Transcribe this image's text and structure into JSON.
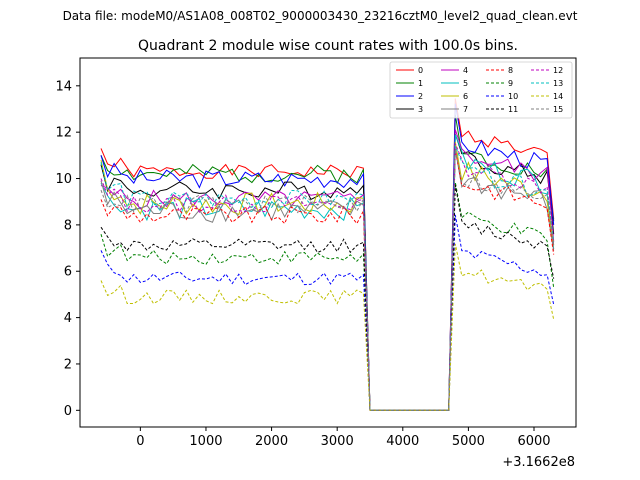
{
  "figure": {
    "suptitle": "Data file: modeM0/AS1A08_008T02_9000003430_23216cztM0_level2_quad_clean.evt"
  },
  "chart_data": {
    "type": "line",
    "title": "Quadrant 2 module wise count rates with 100.0s bins.",
    "xlabel": "",
    "ylabel": "",
    "x_offset_label": "+3.1662e8",
    "xlim": [
      -920,
      6640
    ],
    "ylim": [
      -0.72,
      15.2
    ],
    "xticks": [
      0,
      1000,
      2000,
      3000,
      4000,
      5000,
      6000
    ],
    "yticks": [
      0,
      2,
      4,
      6,
      8,
      10,
      12,
      14
    ],
    "grid": false,
    "legend_position": "top-right",
    "x": [
      -600,
      -500,
      -400,
      -300,
      -200,
      -100,
      0,
      100,
      200,
      300,
      400,
      500,
      600,
      700,
      800,
      900,
      1000,
      1100,
      1200,
      1300,
      1400,
      1500,
      1600,
      1700,
      1800,
      1900,
      2000,
      2100,
      2200,
      2300,
      2400,
      2500,
      2600,
      2700,
      2800,
      2900,
      3000,
      3100,
      3200,
      3300,
      3400,
      3500,
      3600,
      3700,
      3800,
      3900,
      4000,
      4100,
      4200,
      4300,
      4400,
      4500,
      4600,
      4700,
      4800,
      4900,
      5000,
      5100,
      5200,
      5300,
      5400,
      5500,
      5600,
      5700,
      5800,
      5900,
      6000,
      6100,
      6200,
      6300
    ],
    "gap_indices": [
      41,
      42,
      43,
      44,
      45,
      46,
      47,
      48,
      49,
      50,
      51,
      52,
      53
    ],
    "series": [
      {
        "name": "0",
        "color": "#ff0000",
        "dash": "solid",
        "base": 10.3,
        "post": 12.0,
        "amp": 0.3,
        "seed": 1,
        "first": 11.3
      },
      {
        "name": "1",
        "color": "#008000",
        "dash": "solid",
        "base": 10.2,
        "post": 11.2,
        "amp": 0.4,
        "seed": 2,
        "first": 11.0
      },
      {
        "name": "2",
        "color": "#0000ff",
        "dash": "solid",
        "base": 10.0,
        "post": 11.6,
        "amp": 0.4,
        "seed": 3,
        "first": 11.0
      },
      {
        "name": "3",
        "color": "#000000",
        "dash": "solid",
        "base": 9.5,
        "post": 11.0,
        "amp": 0.4,
        "seed": 4,
        "first": 10.6
      },
      {
        "name": "4",
        "color": "#bf00bf",
        "dash": "solid",
        "base": 9.1,
        "post": 11.1,
        "amp": 0.4,
        "seed": 5,
        "first": 9.7
      },
      {
        "name": "5",
        "color": "#00bfbf",
        "dash": "solid",
        "base": 8.7,
        "post": 10.8,
        "amp": 0.5,
        "seed": 6,
        "first": 9.8
      },
      {
        "name": "6",
        "color": "#bfbf00",
        "dash": "solid",
        "base": 8.9,
        "post": 10.4,
        "amp": 0.5,
        "seed": 7,
        "first": 10.8
      },
      {
        "name": "7",
        "color": "#808080",
        "dash": "solid",
        "base": 8.6,
        "post": 10.0,
        "amp": 0.5,
        "seed": 8,
        "first": 9.9
      },
      {
        "name": "8",
        "color": "#ff0000",
        "dash": "dashed",
        "base": 8.4,
        "post": 9.9,
        "amp": 0.4,
        "seed": 9,
        "first": 9.1
      },
      {
        "name": "9",
        "color": "#008000",
        "dash": "dashed",
        "base": 6.6,
        "post": 8.4,
        "amp": 0.3,
        "seed": 10,
        "first": 7.6
      },
      {
        "name": "10",
        "color": "#0000ff",
        "dash": "dashed",
        "base": 5.7,
        "post": 6.9,
        "amp": 0.3,
        "seed": 11,
        "first": 6.9
      },
      {
        "name": "11",
        "color": "#000000",
        "dash": "dashed",
        "base": 7.1,
        "post": 8.1,
        "amp": 0.3,
        "seed": 12,
        "first": 7.9
      },
      {
        "name": "12",
        "color": "#bf00bf",
        "dash": "dashed",
        "base": 8.9,
        "post": 10.6,
        "amp": 0.4,
        "seed": 13,
        "first": 10.0
      },
      {
        "name": "13",
        "color": "#00bfbf",
        "dash": "dashed",
        "base": 9.1,
        "post": 10.4,
        "amp": 0.4,
        "seed": 14,
        "first": 10.7
      },
      {
        "name": "14",
        "color": "#bfbf00",
        "dash": "dashed",
        "base": 4.9,
        "post": 6.1,
        "amp": 0.3,
        "seed": 15,
        "first": 5.6
      },
      {
        "name": "15",
        "color": "#808080",
        "dash": "dashed",
        "base": 8.9,
        "post": 10.1,
        "amp": 0.4,
        "seed": 16,
        "first": 9.5
      }
    ]
  }
}
